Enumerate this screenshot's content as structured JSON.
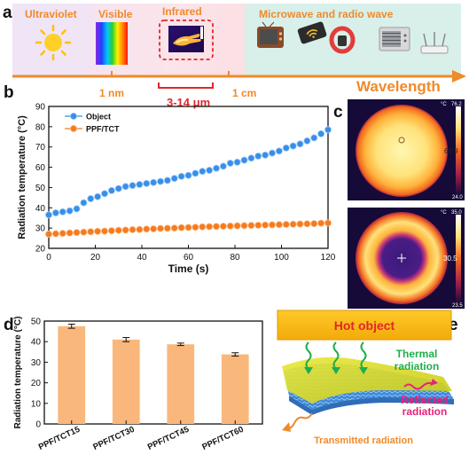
{
  "panel_letters": {
    "a": "a",
    "b": "b",
    "c": "c",
    "d": "d",
    "e": "e"
  },
  "spectrum": {
    "bands": [
      "Ultraviolet",
      "Visible",
      "Infrared",
      "Microwave and radio wave"
    ],
    "markers": [
      "1 nm",
      "1 cm"
    ],
    "ir_range": "3-14 μm",
    "axis_label": "Wavelength",
    "colors": {
      "uv": "#efe5f6",
      "visible_rainbow": true,
      "ir": "#fbdde0",
      "microwave": "#d8f0e9",
      "label": "#f08a2a",
      "range": "#e0262b"
    }
  },
  "thermal": {
    "top": {
      "unit": "°C",
      "max": "76.2",
      "center": "69.9",
      "min": "24.0"
    },
    "bottom": {
      "unit": "°C",
      "max": "35.0",
      "center": "30.5",
      "min": "23.5"
    }
  },
  "diagram": {
    "hot_object": "Hot object",
    "thermal": "Thermal\nradiation",
    "reflected": "Reflected\nradiation",
    "transmitted": "Transmitted radiation",
    "colors": {
      "hot_object": "#f7bb16",
      "hot_text": "#e2262a",
      "thermal": "#1fae4b",
      "reflected": "#e8237b",
      "transmitted": "#f08a2a"
    }
  },
  "chart_data": [
    {
      "type": "scatter",
      "panel": "b",
      "xlabel": "Time (s)",
      "ylabel": "Radiation temperature (°C)",
      "xlim": [
        0,
        120
      ],
      "ylim": [
        20,
        90
      ],
      "xticks": [
        0,
        20,
        40,
        60,
        80,
        100,
        120
      ],
      "yticks": [
        20,
        30,
        40,
        50,
        60,
        70,
        80,
        90
      ],
      "legend_position": "top-left",
      "grid": false,
      "series": [
        {
          "name": "Object",
          "color": "#3a8ee6",
          "x": [
            0,
            3,
            6,
            9,
            12,
            15,
            18,
            21,
            24,
            27,
            30,
            33,
            36,
            39,
            42,
            45,
            48,
            51,
            54,
            57,
            60,
            63,
            66,
            69,
            72,
            75,
            78,
            81,
            84,
            87,
            90,
            93,
            96,
            99,
            102,
            105,
            108,
            111,
            114,
            117,
            120
          ],
          "y": [
            36.5,
            37.5,
            38.0,
            38.5,
            39.5,
            42.5,
            44.5,
            45.5,
            47.0,
            48.5,
            49.5,
            50.5,
            51.0,
            51.5,
            52.0,
            52.5,
            53.0,
            53.5,
            54.5,
            55.5,
            56.0,
            57.0,
            58.0,
            58.5,
            59.5,
            60.5,
            62.0,
            62.5,
            63.5,
            64.5,
            65.5,
            66.0,
            67.0,
            68.0,
            69.5,
            70.5,
            71.5,
            73.0,
            74.5,
            76.5,
            78.5
          ]
        },
        {
          "name": "PPF/TCT",
          "color": "#f47b20",
          "x": [
            0,
            3,
            6,
            9,
            12,
            15,
            18,
            21,
            24,
            27,
            30,
            33,
            36,
            39,
            42,
            45,
            48,
            51,
            54,
            57,
            60,
            63,
            66,
            69,
            72,
            75,
            78,
            81,
            84,
            87,
            90,
            93,
            96,
            99,
            102,
            105,
            108,
            111,
            114,
            117,
            120
          ],
          "y": [
            27.0,
            27.2,
            27.4,
            27.6,
            27.8,
            28.0,
            28.2,
            28.4,
            28.5,
            28.7,
            28.9,
            29.0,
            29.2,
            29.3,
            29.5,
            29.6,
            29.8,
            29.9,
            30.0,
            30.2,
            30.3,
            30.4,
            30.6,
            30.7,
            30.8,
            30.9,
            31.0,
            31.1,
            31.2,
            31.3,
            31.4,
            31.5,
            31.6,
            31.7,
            31.8,
            31.9,
            32.0,
            32.1,
            32.2,
            32.4,
            32.5
          ]
        }
      ]
    },
    {
      "type": "bar",
      "panel": "d",
      "ylabel": "Radiation temperature (°C)",
      "ylim": [
        0,
        50
      ],
      "yticks": [
        0,
        10,
        20,
        30,
        40,
        50
      ],
      "categories": [
        "PPF/TCT15",
        "PPF/TCT30",
        "PPF/TCT45",
        "PPF/TCT60"
      ],
      "values": [
        47.5,
        41.0,
        38.7,
        33.8
      ],
      "errors": [
        1.0,
        1.0,
        0.6,
        0.8
      ],
      "color": "#f9b77c"
    }
  ]
}
